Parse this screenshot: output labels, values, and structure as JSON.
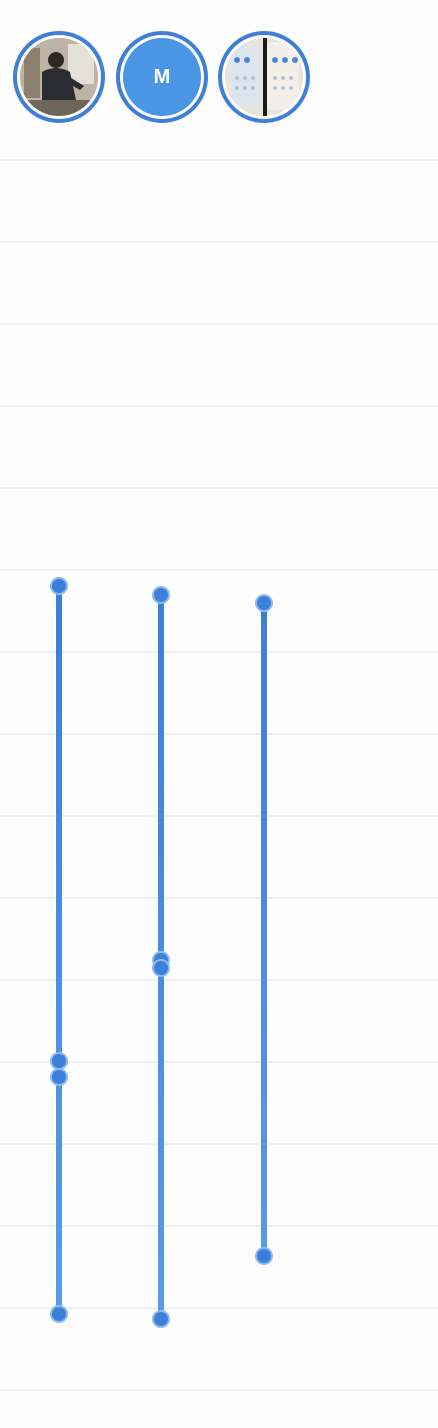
{
  "avatars": [
    {
      "kind": "photo",
      "icon": "person-photo-icon"
    },
    {
      "kind": "initial",
      "initial": "M"
    },
    {
      "kind": "photo",
      "icon": "screens-photo-icon"
    }
  ],
  "colors": {
    "accent": "#3c80dc",
    "track_light": "#5b9be3",
    "grid": "#efefef",
    "background": "#fdfdfd"
  }
}
